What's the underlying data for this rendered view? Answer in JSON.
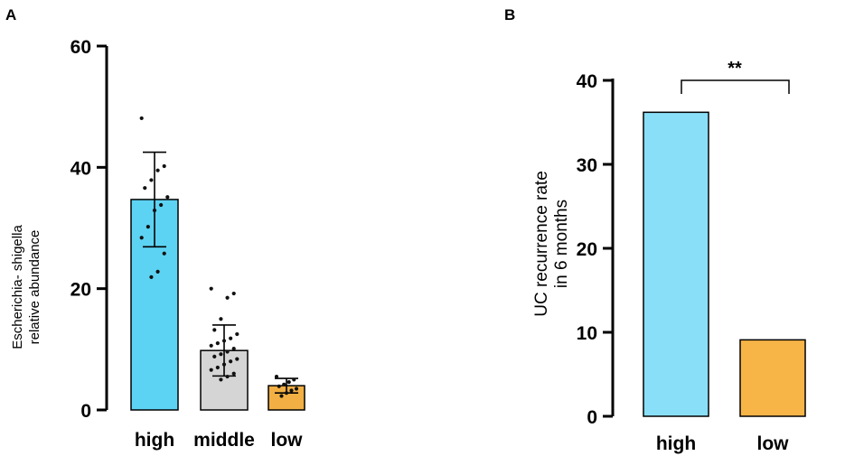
{
  "chart_data": [
    {
      "panel": "A",
      "type": "bar",
      "ylabel_lines": [
        "Escherichia- shigella",
        "relative abundance"
      ],
      "xlabel": "",
      "ylim": [
        0,
        60
      ],
      "yticks": [
        0,
        20,
        40,
        60
      ],
      "categories": [
        "high",
        "middle",
        "low"
      ],
      "values": [
        34.7,
        9.8,
        4.0
      ],
      "error_sd": [
        7.8,
        4.2,
        1.2
      ],
      "colors": [
        "#5DD3F3",
        "#D5D5D5",
        "#F2AF44"
      ],
      "points": [
        [
          48.1,
          40.2,
          39.5,
          37.9,
          36.6,
          35.1,
          33.8,
          32.9,
          30.2,
          28.4,
          25.8,
          22.8,
          21.9
        ],
        [
          20.0,
          19.2,
          18.5,
          15.0,
          13.2,
          12.5,
          11.8,
          11.4,
          11.0,
          10.6,
          10.1,
          9.6,
          9.2,
          8.8,
          8.4,
          8.0,
          7.5,
          7.0,
          6.6,
          6.0,
          5.5,
          5.0
        ],
        [
          5.5,
          5.0,
          4.6,
          4.2,
          3.9,
          3.5,
          3.2,
          2.8,
          2.3
        ]
      ]
    },
    {
      "panel": "B",
      "type": "bar",
      "ylabel_lines": [
        "UC recurrence rate",
        "in 6 months"
      ],
      "xlabel": "",
      "ylim": [
        0,
        40
      ],
      "yticks": [
        0,
        10,
        20,
        30,
        40
      ],
      "categories": [
        "high",
        "low"
      ],
      "values": [
        36.2,
        9.1
      ],
      "colors": [
        "#8ADFF8",
        "#F7B548"
      ],
      "significance": "**"
    }
  ]
}
